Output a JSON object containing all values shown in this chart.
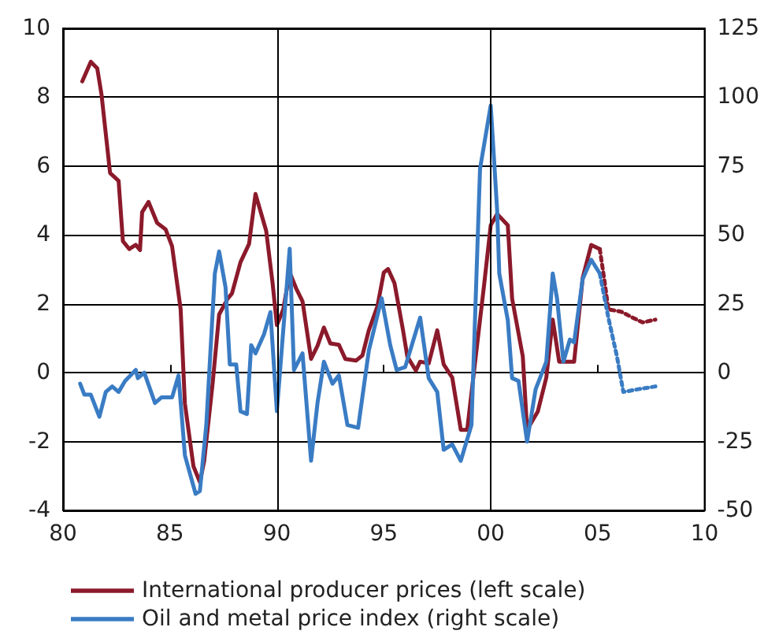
{
  "chart_data": {
    "type": "line",
    "xlim": [
      1980,
      2010
    ],
    "xticks": [
      {
        "value": 1980,
        "label": "80"
      },
      {
        "value": 1985,
        "label": "85"
      },
      {
        "value": 1990,
        "label": "90"
      },
      {
        "value": 1995,
        "label": "95"
      },
      {
        "value": 2000,
        "label": "00"
      },
      {
        "value": 2005,
        "label": "05"
      },
      {
        "value": 2010,
        "label": "10"
      }
    ],
    "ylim": [
      -4,
      10
    ],
    "yticks": [
      -4,
      -2,
      0,
      2,
      4,
      6,
      8,
      10
    ],
    "y2lim": [
      -50,
      125
    ],
    "y2ticks": [
      -50,
      -25,
      0,
      25,
      50,
      75,
      100,
      125
    ],
    "grid": "y",
    "legend": "bottom",
    "marker": "none",
    "ref_lines": [
      {
        "axis": "x",
        "value": 1990,
        "color": "#000000"
      },
      {
        "axis": "x",
        "value": 2000,
        "color": "#000000"
      }
    ],
    "series": [
      {
        "name": "International producer prices (left scale)",
        "color": "#8b1a2b",
        "line_style": "solid",
        "x": [
          1980.9,
          1981.3,
          1981.6,
          1981.8,
          1982.2,
          1982.6,
          1982.8,
          1983.1,
          1983.4,
          1983.6,
          1983.7,
          1984.0,
          1984.4,
          1984.8,
          1985.1,
          1985.5,
          1985.7,
          1986.1,
          1986.4,
          1986.6,
          1987.0,
          1987.3,
          1987.7,
          1987.9,
          1988.3,
          1988.7,
          1989.0,
          1989.5,
          1989.8,
          1990.0,
          1990.3,
          1990.6,
          1990.9,
          1991.2,
          1991.6,
          1991.9,
          1992.2,
          1992.5,
          1992.9,
          1993.2,
          1993.7,
          1994.0,
          1994.3,
          1994.7,
          1995.0,
          1995.2,
          1995.5,
          1995.9,
          1996.1,
          1996.5,
          1996.7,
          1997.1,
          1997.5,
          1997.8,
          1998.2,
          1998.6,
          1998.9,
          1999.3,
          1999.7,
          2000.0,
          2000.3,
          2000.8,
          2001.0,
          2001.5,
          2001.7,
          2002.2,
          2002.6,
          2002.9,
          2003.2,
          2003.6,
          2003.9,
          2004.3,
          2004.7,
          2005.1
        ],
        "values": [
          8.46,
          9.03,
          8.84,
          8.08,
          5.8,
          5.57,
          3.82,
          3.59,
          3.71,
          3.56,
          4.66,
          4.96,
          4.35,
          4.16,
          3.67,
          1.84,
          -0.9,
          -2.72,
          -3.18,
          -2.57,
          -0.29,
          1.69,
          2.15,
          2.3,
          3.21,
          3.74,
          5.19,
          4.12,
          2.6,
          1.38,
          1.84,
          2.91,
          2.45,
          2.07,
          0.4,
          0.78,
          1.31,
          0.85,
          0.81,
          0.4,
          0.35,
          0.5,
          1.23,
          1.92,
          2.91,
          3.01,
          2.6,
          1.23,
          0.47,
          0.06,
          0.32,
          0.27,
          1.23,
          0.24,
          -0.14,
          -1.66,
          -1.66,
          0.47,
          2.6,
          4.28,
          4.61,
          4.28,
          2.15,
          0.47,
          -1.66,
          -1.13,
          -0.14,
          1.54,
          0.32,
          0.32,
          0.32,
          2.75,
          3.71,
          3.59
        ]
      },
      {
        "name": "Oil and metal price index (right scale)",
        "color": "#3a7cc4",
        "line_style": "solid",
        "axis": "y2",
        "x": [
          1980.8,
          1981.0,
          1981.3,
          1981.7,
          1982.0,
          1982.3,
          1982.6,
          1982.9,
          1983.4,
          1983.5,
          1983.8,
          1984.3,
          1984.6,
          1985.1,
          1985.4,
          1985.7,
          1986.2,
          1986.4,
          1986.7,
          1987.1,
          1987.3,
          1987.6,
          1987.8,
          1988.1,
          1988.3,
          1988.6,
          1988.8,
          1989.0,
          1989.4,
          1989.7,
          1990.0,
          1990.6,
          1990.8,
          1991.2,
          1991.6,
          1991.9,
          1992.2,
          1992.6,
          1992.9,
          1993.3,
          1993.8,
          1994.3,
          1994.9,
          1995.3,
          1995.6,
          1996.0,
          1996.7,
          1997.1,
          1997.5,
          1997.8,
          1998.2,
          1998.6,
          1999.1,
          1999.5,
          2000.0,
          2000.3,
          2000.4,
          2000.8,
          2001.0,
          2001.3,
          2001.7,
          2002.1,
          2002.6,
          2002.9,
          2003.1,
          2003.4,
          2003.7,
          2003.9,
          2004.3,
          2004.7,
          2005.1
        ],
        "values": [
          -4,
          -8,
          -8,
          -16,
          -7,
          -5,
          -7,
          -3,
          1,
          -2,
          0,
          -11,
          -9,
          -9,
          -1,
          -30,
          -44,
          -43,
          -19,
          36,
          44,
          31,
          3,
          3,
          -14,
          -15,
          10,
          7,
          14,
          22,
          -14,
          45,
          1,
          7,
          -32,
          -11,
          4,
          -4,
          -1,
          -19,
          -20,
          8,
          27,
          10,
          1,
          2,
          20,
          -2,
          -7,
          -28,
          -26,
          -32,
          -19,
          74,
          97,
          59,
          36,
          19,
          -2,
          -3,
          -25,
          -6,
          4,
          36,
          27,
          4,
          12,
          11,
          34,
          41,
          36
        ]
      },
      {
        "color": "#8b1a2b",
        "line_style": "dotted",
        "x": [
          2005.1,
          2005.3,
          2005.5,
          2006.1,
          2006.6,
          2007.1,
          2007.7
        ],
        "values": [
          3.59,
          2.75,
          1.84,
          1.77,
          1.61,
          1.46,
          1.54
        ]
      },
      {
        "color": "#3a7cc4",
        "line_style": "dotted",
        "axis": "y2",
        "x": [
          2005.1,
          2005.5,
          2005.9,
          2006.2,
          2006.9,
          2007.7
        ],
        "values": [
          36,
          20,
          6,
          -7,
          -6,
          -5
        ]
      }
    ]
  }
}
